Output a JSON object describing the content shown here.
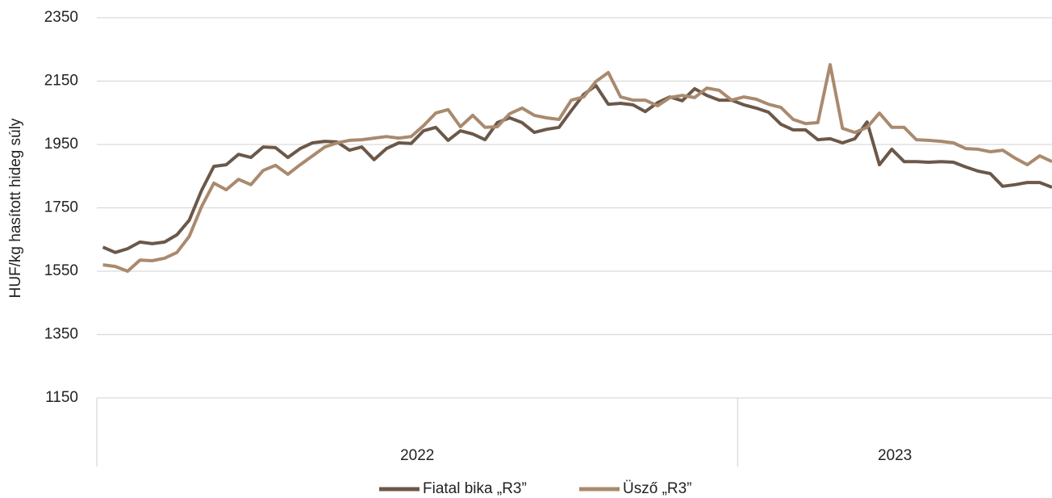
{
  "chart_data": {
    "type": "line",
    "y_label": "HUF/kg hasított hideg súly",
    "categories": [
      null,
      null,
      null,
      null,
      null,
      null,
      null,
      null,
      null,
      null,
      null,
      null,
      null,
      null,
      null,
      null,
      null,
      null,
      null,
      null,
      null,
      null,
      null,
      null,
      null,
      null,
      null,
      null,
      null,
      null,
      null,
      null,
      null,
      null,
      null,
      null,
      null,
      null,
      null,
      null,
      null,
      null,
      null,
      null,
      null,
      null,
      null,
      null,
      null,
      null,
      null,
      null,
      null,
      null,
      null,
      null,
      null,
      null,
      null,
      null,
      null,
      null,
      null,
      null,
      null,
      null,
      null,
      null,
      null,
      null,
      null,
      null,
      null,
      null,
      null,
      null,
      null,
      null
    ],
    "groups": [
      {
        "label": "2022",
        "size": 52
      },
      {
        "label": "2023",
        "size": 26
      }
    ],
    "series": [
      {
        "name": "Fiatal bika „R3”",
        "color": "#6b5849",
        "values": [
          1626,
          1609,
          1621,
          1642,
          1637,
          1642,
          1665,
          1711,
          1805,
          1881,
          1886,
          1919,
          1909,
          1942,
          1940,
          1909,
          1937,
          1955,
          1960,
          1958,
          1932,
          1942,
          1902,
          1937,
          1955,
          1953,
          1993,
          2004,
          1963,
          1993,
          1983,
          1965,
          2019,
          2034,
          2019,
          1988,
          1998,
          2004,
          2057,
          2108,
          2136,
          2077,
          2080,
          2075,
          2054,
          2082,
          2100,
          2088,
          2126,
          2105,
          2090,
          2090,
          2075,
          2065,
          2052,
          2014,
          1996,
          1996,
          1965,
          1968,
          1955,
          1968,
          2021,
          1886,
          1935,
          1896,
          1896,
          1894,
          1896,
          1894,
          1879,
          1866,
          1858,
          1818,
          1823,
          1830,
          1830,
          1815
        ]
      },
      {
        "name": "Üsző „R3”",
        "color": "#a98a6e",
        "values": [
          1570,
          1565,
          1550,
          1585,
          1583,
          1591,
          1609,
          1660,
          1754,
          1828,
          1807,
          1840,
          1823,
          1868,
          1884,
          1856,
          1886,
          1914,
          1942,
          1955,
          1963,
          1965,
          1970,
          1975,
          1970,
          1975,
          2009,
          2049,
          2060,
          2006,
          2042,
          2004,
          2006,
          2047,
          2065,
          2042,
          2034,
          2029,
          2090,
          2100,
          2149,
          2177,
          2100,
          2090,
          2090,
          2072,
          2098,
          2105,
          2098,
          2128,
          2121,
          2090,
          2100,
          2093,
          2077,
          2067,
          2029,
          2016,
          2019,
          2202,
          2001,
          1988,
          2004,
          2049,
          2004,
          2004,
          1965,
          1963,
          1960,
          1955,
          1937,
          1935,
          1927,
          1932,
          1907,
          1886,
          1914,
          1896
        ]
      }
    ],
    "ylim": [
      1150,
      2350
    ],
    "yticks": [
      1150,
      1350,
      1550,
      1750,
      1950,
      2150,
      2350
    ],
    "grid": true,
    "legend": "bottom"
  }
}
